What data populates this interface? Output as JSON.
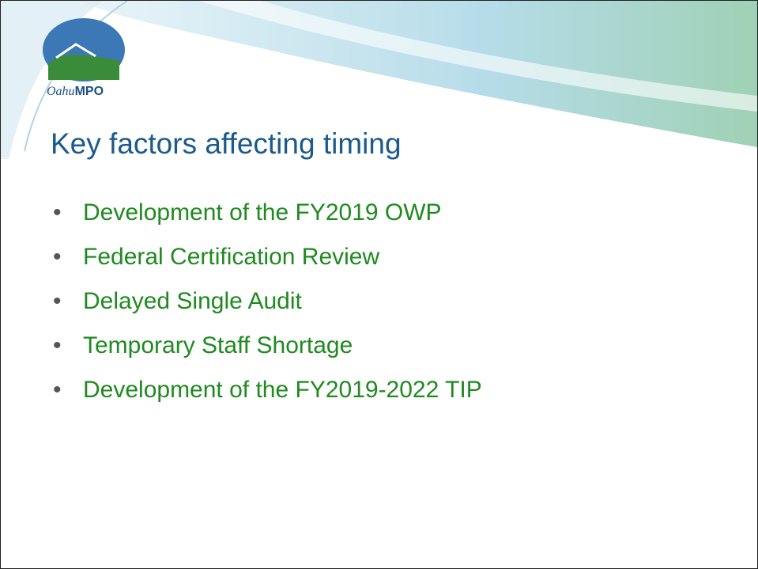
{
  "logo": {
    "text": "MPO",
    "script": "Oahu"
  },
  "slide": {
    "title": "Key factors affecting timing",
    "bullets": [
      "Development of the FY2019 OWP",
      "Federal Certification Review",
      "Delayed Single Audit",
      "Temporary Staff Shortage",
      "Development of the FY2019-2022 TIP"
    ]
  }
}
